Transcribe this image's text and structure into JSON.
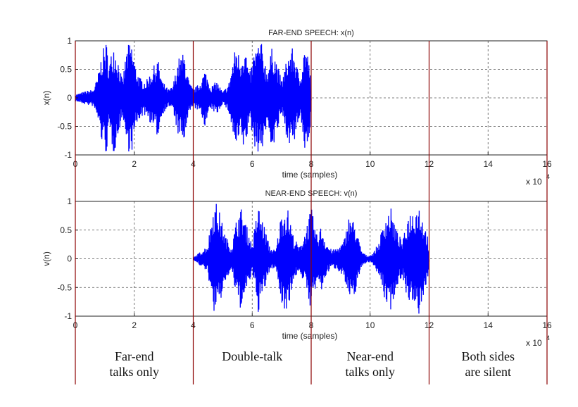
{
  "chart_data": [
    {
      "type": "line",
      "title": "FAR-END SPEECH: x(n)",
      "xlabel": "time (samples)",
      "ylabel": "x(n)",
      "xlim": [
        0,
        16
      ],
      "ylim": [
        -1,
        1
      ],
      "x_multiplier_label": "x 10",
      "x_multiplier_exponent": "4",
      "x_ticks": [
        "0",
        "2",
        "4",
        "6",
        "8",
        "10",
        "12",
        "14",
        "16"
      ],
      "y_ticks": [
        "-1",
        "-0.5",
        "0",
        "0.5",
        "1"
      ],
      "grid": true,
      "signal_color": "#0000ff",
      "active_range": [
        0,
        8
      ],
      "bursts": [
        [
          0.0,
          0.06
        ],
        [
          0.35,
          0.12
        ],
        [
          0.6,
          0.15
        ],
        [
          0.75,
          0.35
        ],
        [
          0.9,
          0.8
        ],
        [
          1.05,
          1.0
        ],
        [
          1.15,
          0.6
        ],
        [
          1.3,
          1.0
        ],
        [
          1.45,
          0.7
        ],
        [
          1.6,
          0.3
        ],
        [
          1.75,
          0.9
        ],
        [
          1.9,
          1.0
        ],
        [
          2.05,
          0.55
        ],
        [
          2.2,
          0.35
        ],
        [
          2.4,
          0.3
        ],
        [
          2.6,
          0.5
        ],
        [
          2.8,
          0.7
        ],
        [
          2.95,
          0.3
        ],
        [
          3.15,
          0.15
        ],
        [
          3.3,
          0.2
        ],
        [
          3.5,
          0.7
        ],
        [
          3.7,
          0.8
        ],
        [
          3.85,
          0.3
        ],
        [
          4.0,
          0.15
        ],
        [
          4.2,
          0.25
        ],
        [
          4.4,
          0.5
        ],
        [
          4.6,
          0.2
        ],
        [
          4.8,
          0.3
        ],
        [
          5.0,
          0.1
        ],
        [
          5.2,
          0.25
        ],
        [
          5.45,
          0.95
        ],
        [
          5.6,
          0.7
        ],
        [
          5.75,
          1.0
        ],
        [
          5.9,
          0.4
        ],
        [
          6.1,
          0.9
        ],
        [
          6.3,
          1.0
        ],
        [
          6.5,
          0.5
        ],
        [
          6.7,
          0.95
        ],
        [
          6.85,
          0.6
        ],
        [
          7.0,
          0.3
        ],
        [
          7.2,
          0.75
        ],
        [
          7.4,
          0.9
        ],
        [
          7.6,
          0.35
        ],
        [
          7.8,
          1.0
        ],
        [
          7.95,
          0.6
        ],
        [
          8.0,
          0.05
        ]
      ]
    },
    {
      "type": "line",
      "title": "NEAR-END SPEECH: v(n)",
      "xlabel": "time (samples)",
      "ylabel": "v(n)",
      "xlim": [
        0,
        16
      ],
      "ylim": [
        -1,
        1
      ],
      "x_multiplier_label": "x 10",
      "x_multiplier_exponent": "4",
      "x_ticks": [
        "0",
        "2",
        "4",
        "6",
        "8",
        "10",
        "12",
        "14",
        "16"
      ],
      "y_ticks": [
        "-1",
        "-0.5",
        "0",
        "0.5",
        "1"
      ],
      "grid": true,
      "signal_color": "#0000ff",
      "active_range": [
        4,
        12
      ],
      "bursts": [
        [
          4.0,
          0.02
        ],
        [
          4.3,
          0.15
        ],
        [
          4.5,
          0.25
        ],
        [
          4.65,
          0.9
        ],
        [
          4.8,
          1.0
        ],
        [
          4.95,
          0.7
        ],
        [
          5.1,
          0.4
        ],
        [
          5.3,
          0.2
        ],
        [
          5.5,
          0.8
        ],
        [
          5.65,
          0.9
        ],
        [
          5.8,
          0.6
        ],
        [
          6.0,
          0.25
        ],
        [
          6.2,
          0.95
        ],
        [
          6.4,
          0.6
        ],
        [
          6.6,
          0.2
        ],
        [
          6.8,
          0.15
        ],
        [
          7.0,
          0.85
        ],
        [
          7.2,
          0.9
        ],
        [
          7.4,
          0.4
        ],
        [
          7.6,
          0.2
        ],
        [
          7.8,
          0.5
        ],
        [
          8.0,
          0.9
        ],
        [
          8.2,
          0.4
        ],
        [
          8.35,
          0.6
        ],
        [
          8.5,
          0.3
        ],
        [
          8.7,
          0.15
        ],
        [
          8.9,
          0.2
        ],
        [
          9.1,
          0.3
        ],
        [
          9.3,
          0.8
        ],
        [
          9.5,
          0.6
        ],
        [
          9.7,
          0.15
        ],
        [
          9.9,
          0.05
        ],
        [
          10.1,
          0.1
        ],
        [
          10.3,
          0.3
        ],
        [
          10.5,
          0.75
        ],
        [
          10.7,
          0.9
        ],
        [
          10.9,
          0.5
        ],
        [
          11.1,
          0.3
        ],
        [
          11.3,
          0.8
        ],
        [
          11.5,
          0.9
        ],
        [
          11.65,
          1.0
        ],
        [
          11.8,
          0.7
        ],
        [
          11.95,
          0.4
        ],
        [
          12.0,
          0.05
        ]
      ]
    }
  ],
  "regions": {
    "boundaries": [
      0,
      4,
      8,
      12,
      16
    ],
    "line_color": "#8b0000",
    "labels": [
      {
        "lines": [
          "Far-end",
          "talks only"
        ],
        "x_center": 2
      },
      {
        "lines": [
          "Double-talk"
        ],
        "x_center": 6
      },
      {
        "lines": [
          "Near-end",
          "talks only"
        ],
        "x_center": 10
      },
      {
        "lines": [
          "Both sides",
          "are silent"
        ],
        "x_center": 14
      }
    ]
  }
}
